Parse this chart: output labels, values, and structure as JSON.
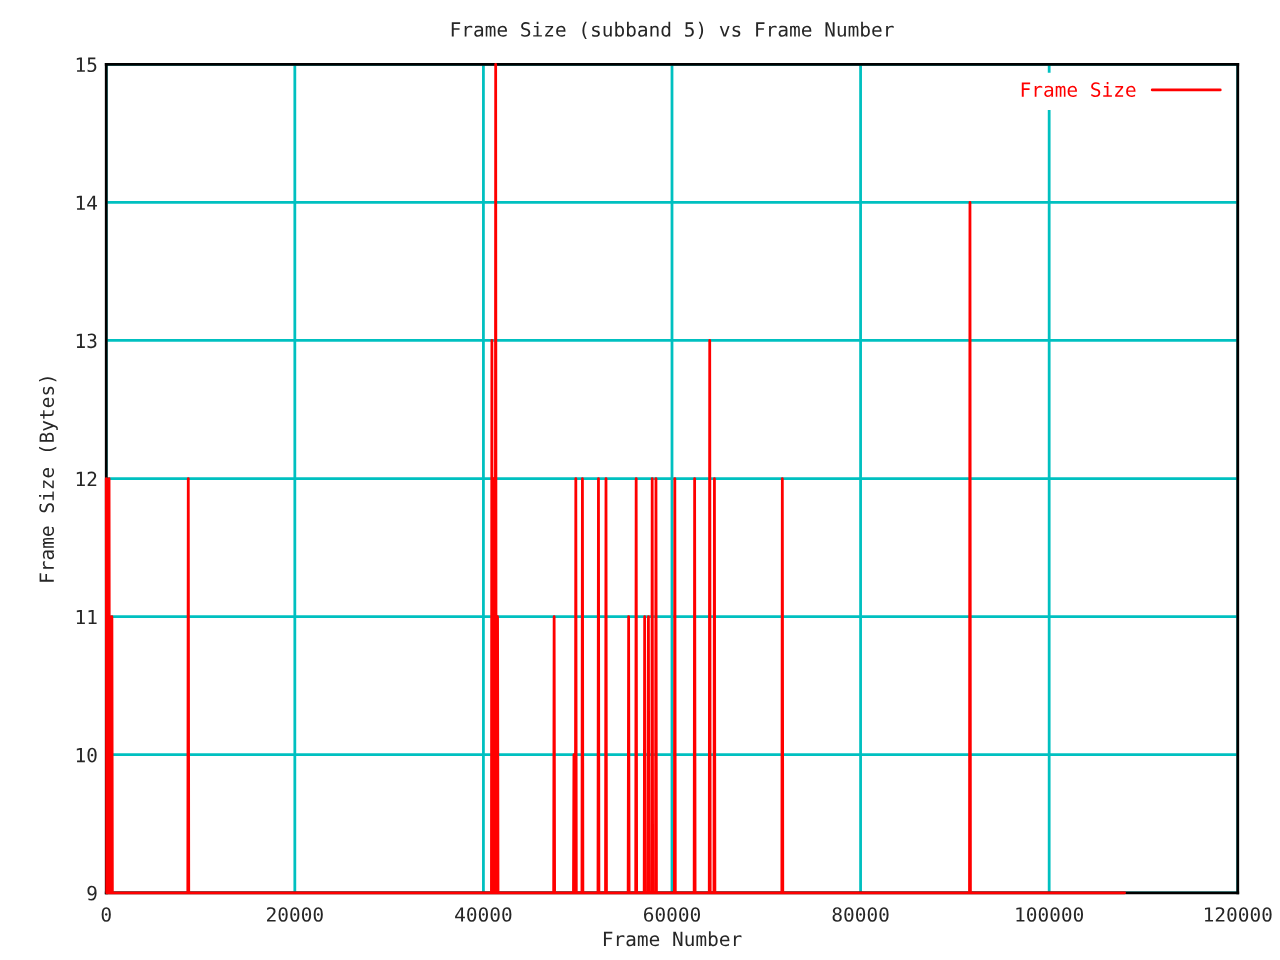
{
  "chart_data": {
    "type": "line",
    "title": "Frame Size (subband 5) vs Frame Number",
    "xlabel": "Frame Number",
    "ylabel": "Frame Size (Bytes)",
    "xlim": [
      0,
      120000
    ],
    "xticks": [
      0,
      20000,
      40000,
      60000,
      80000,
      100000,
      120000
    ],
    "ylim": [
      9,
      15
    ],
    "yticks": [
      9,
      10,
      11,
      12,
      13,
      14,
      15
    ],
    "grid": true,
    "legend": "top right",
    "series": [
      {
        "name": "Frame Size",
        "color": "#ff0000",
        "x": [
          0,
          50,
          100,
          150,
          200,
          250,
          300,
          350,
          400,
          450,
          500,
          550,
          600,
          650,
          8650,
          8700,
          8750,
          40850,
          40900,
          40950,
          41050,
          41100,
          41150,
          41250,
          41300,
          41350,
          41450,
          41500,
          41550,
          47450,
          47500,
          47550,
          49550,
          49600,
          49650,
          49750,
          49800,
          49850,
          50450,
          50500,
          50550,
          52150,
          52200,
          52250,
          52950,
          53000,
          53050,
          55350,
          55400,
          55450,
          56150,
          56200,
          56250,
          57050,
          57100,
          57150,
          57450,
          57500,
          57550,
          57850,
          57900,
          57950,
          58250,
          58300,
          58350,
          60250,
          60300,
          60350,
          62350,
          62400,
          62450,
          63950,
          64000,
          64050,
          64450,
          64500,
          64550,
          71650,
          71700,
          71750,
          91550,
          91600,
          91650,
          108000
        ],
        "values": [
          12,
          9,
          9,
          11,
          9,
          9,
          12,
          9,
          9,
          11,
          9,
          9,
          11,
          9,
          9,
          12,
          9,
          9,
          13,
          9,
          9,
          12,
          9,
          9,
          15,
          9,
          9,
          11,
          9,
          9,
          11,
          9,
          9,
          10,
          9,
          9,
          12,
          9,
          9,
          12,
          9,
          9,
          12,
          9,
          9,
          12,
          9,
          9,
          11,
          9,
          9,
          12,
          9,
          9,
          11,
          9,
          9,
          11,
          9,
          9,
          12,
          9,
          9,
          12,
          9,
          9,
          12,
          9,
          9,
          12,
          9,
          9,
          13,
          9,
          9,
          12,
          9,
          9,
          12,
          9,
          9,
          14,
          9,
          9
        ]
      }
    ]
  }
}
